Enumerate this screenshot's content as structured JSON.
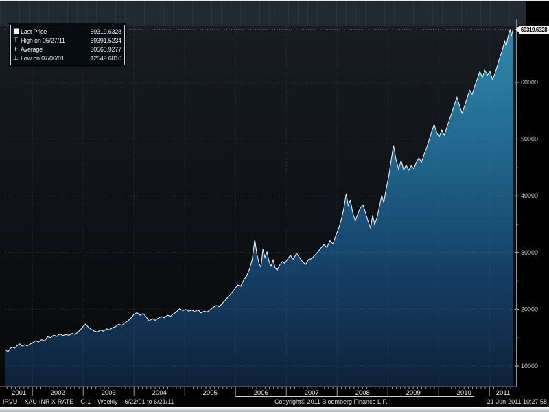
{
  "legend": {
    "rows": [
      {
        "icon_name": "series-key-square-icon",
        "icon": "■",
        "label": "Last Price",
        "value": "69319.6328"
      },
      {
        "icon_name": "high-marker-icon",
        "icon": "⊤",
        "label": "High on 05/27/11",
        "value": "69391.5234"
      },
      {
        "icon_name": "average-marker-icon",
        "icon": "+",
        "label": "Average",
        "value": "30560.9277"
      },
      {
        "icon_name": "low-marker-icon",
        "icon": "⊥",
        "label": "Low on 07/06/01",
        "value": "12549.6016"
      }
    ]
  },
  "y_axis": {
    "last_price_label": "69319.6328"
  },
  "status_bar": {
    "ticker": "IRVU",
    "security": "XAU-INR X-RATE",
    "chart_id": "G-1",
    "periodicity": "Weekly",
    "range": "6/22/01 to 6/21/11",
    "copyright": "Copyright© 2011 Bloomberg Finance L.P.",
    "timestamp": "21-Jun-2011 10:27:58"
  },
  "chart_data": {
    "type": "area",
    "title": "XAU-INR X-RATE Weekly 6/22/01 to 6/21/11",
    "xlabel": "",
    "ylabel": "",
    "x_ticks": [
      2001,
      2002,
      2003,
      2004,
      2005,
      2006,
      2007,
      2008,
      2009,
      2010,
      2011
    ],
    "y_ticks": [
      10000,
      20000,
      30000,
      40000,
      50000,
      60000
    ],
    "ylim": [
      6400,
      70000
    ],
    "xlim": [
      2001.47,
      2011.47
    ],
    "grid": "dotted",
    "legend_position": "top-left",
    "stats": {
      "last": 69319.6328,
      "high": 69391.5234,
      "high_date": "05/27/11",
      "average": 30560.9277,
      "low": 12549.6016,
      "low_date": "07/06/01"
    },
    "colors": {
      "line": "#e9edee",
      "fill_top": "#318aab",
      "fill_mid1": "#226a90",
      "fill_mid2": "#153f66",
      "fill_bottom": "#0e2138",
      "bg_top": "#171c21",
      "bg_bottom": "#070809",
      "grid": "#9aa4ad",
      "axis_text": "#c9cdd0",
      "badge_bg": "#f2f3f3"
    },
    "series": [
      {
        "name": "Last Price",
        "points": [
          [
            2001.47,
            12900
          ],
          [
            2001.5,
            12650
          ],
          [
            2001.52,
            12550
          ],
          [
            2001.56,
            13050
          ],
          [
            2001.6,
            13350
          ],
          [
            2001.65,
            13150
          ],
          [
            2001.7,
            13600
          ],
          [
            2001.75,
            13900
          ],
          [
            2001.8,
            13500
          ],
          [
            2001.85,
            13750
          ],
          [
            2001.9,
            13550
          ],
          [
            2001.95,
            13850
          ],
          [
            2002.0,
            14050
          ],
          [
            2002.06,
            14450
          ],
          [
            2002.12,
            14250
          ],
          [
            2002.18,
            14650
          ],
          [
            2002.24,
            14450
          ],
          [
            2002.3,
            15150
          ],
          [
            2002.36,
            15000
          ],
          [
            2002.42,
            15450
          ],
          [
            2002.48,
            15200
          ],
          [
            2002.54,
            15650
          ],
          [
            2002.6,
            15350
          ],
          [
            2002.66,
            15550
          ],
          [
            2002.72,
            15400
          ],
          [
            2002.78,
            15750
          ],
          [
            2002.84,
            15550
          ],
          [
            2002.9,
            16000
          ],
          [
            2002.95,
            16450
          ],
          [
            2003.0,
            17000
          ],
          [
            2003.05,
            17400
          ],
          [
            2003.1,
            16850
          ],
          [
            2003.16,
            16450
          ],
          [
            2003.22,
            16150
          ],
          [
            2003.28,
            16000
          ],
          [
            2003.34,
            16350
          ],
          [
            2003.4,
            16150
          ],
          [
            2003.46,
            16550
          ],
          [
            2003.52,
            16400
          ],
          [
            2003.58,
            16750
          ],
          [
            2003.64,
            16950
          ],
          [
            2003.7,
            17350
          ],
          [
            2003.76,
            17150
          ],
          [
            2003.82,
            17600
          ],
          [
            2003.88,
            17950
          ],
          [
            2003.94,
            18450
          ],
          [
            2004.0,
            19100
          ],
          [
            2004.06,
            19400
          ],
          [
            2004.12,
            18950
          ],
          [
            2004.18,
            19250
          ],
          [
            2004.24,
            18650
          ],
          [
            2004.3,
            17950
          ],
          [
            2004.36,
            18350
          ],
          [
            2004.42,
            18050
          ],
          [
            2004.48,
            18450
          ],
          [
            2004.54,
            18700
          ],
          [
            2004.6,
            18500
          ],
          [
            2004.66,
            18950
          ],
          [
            2004.72,
            18750
          ],
          [
            2004.78,
            19200
          ],
          [
            2004.84,
            19550
          ],
          [
            2004.9,
            20100
          ],
          [
            2004.96,
            19750
          ],
          [
            2005.02,
            19950
          ],
          [
            2005.08,
            19650
          ],
          [
            2005.14,
            19850
          ],
          [
            2005.2,
            19550
          ],
          [
            2005.26,
            19900
          ],
          [
            2005.32,
            19350
          ],
          [
            2005.38,
            19650
          ],
          [
            2005.44,
            19500
          ],
          [
            2005.5,
            19900
          ],
          [
            2005.56,
            20350
          ],
          [
            2005.62,
            20650
          ],
          [
            2005.68,
            20450
          ],
          [
            2005.74,
            21050
          ],
          [
            2005.8,
            21600
          ],
          [
            2005.86,
            22250
          ],
          [
            2005.92,
            22850
          ],
          [
            2005.98,
            23500
          ],
          [
            2006.04,
            24300
          ],
          [
            2006.1,
            24050
          ],
          [
            2006.16,
            25150
          ],
          [
            2006.22,
            25900
          ],
          [
            2006.28,
            27200
          ],
          [
            2006.33,
            28800
          ],
          [
            2006.38,
            32300
          ],
          [
            2006.42,
            29800
          ],
          [
            2006.46,
            28200
          ],
          [
            2006.5,
            27400
          ],
          [
            2006.54,
            30600
          ],
          [
            2006.58,
            29100
          ],
          [
            2006.62,
            30100
          ],
          [
            2006.66,
            28400
          ],
          [
            2006.7,
            27600
          ],
          [
            2006.74,
            28700
          ],
          [
            2006.78,
            27300
          ],
          [
            2006.82,
            26900
          ],
          [
            2006.87,
            27800
          ],
          [
            2006.92,
            28400
          ],
          [
            2006.97,
            28100
          ],
          [
            2007.02,
            28800
          ],
          [
            2007.08,
            29500
          ],
          [
            2007.14,
            28800
          ],
          [
            2007.2,
            29900
          ],
          [
            2007.26,
            29100
          ],
          [
            2007.32,
            28400
          ],
          [
            2007.38,
            27900
          ],
          [
            2007.44,
            28800
          ],
          [
            2007.5,
            28950
          ],
          [
            2007.56,
            29500
          ],
          [
            2007.62,
            30100
          ],
          [
            2007.68,
            30800
          ],
          [
            2007.74,
            31400
          ],
          [
            2007.8,
            30900
          ],
          [
            2007.86,
            32100
          ],
          [
            2007.92,
            31500
          ],
          [
            2007.97,
            32900
          ],
          [
            2008.03,
            34200
          ],
          [
            2008.08,
            35700
          ],
          [
            2008.13,
            37600
          ],
          [
            2008.18,
            40400
          ],
          [
            2008.22,
            38200
          ],
          [
            2008.26,
            39300
          ],
          [
            2008.31,
            36900
          ],
          [
            2008.36,
            35600
          ],
          [
            2008.41,
            36900
          ],
          [
            2008.46,
            37900
          ],
          [
            2008.51,
            38400
          ],
          [
            2008.56,
            37000
          ],
          [
            2008.61,
            35500
          ],
          [
            2008.66,
            34300
          ],
          [
            2008.7,
            36600
          ],
          [
            2008.74,
            34900
          ],
          [
            2008.79,
            36300
          ],
          [
            2008.84,
            38400
          ],
          [
            2008.88,
            40100
          ],
          [
            2008.92,
            38800
          ],
          [
            2008.96,
            41000
          ],
          [
            2009.02,
            43600
          ],
          [
            2009.07,
            46600
          ],
          [
            2009.11,
            48900
          ],
          [
            2009.16,
            46400
          ],
          [
            2009.21,
            44700
          ],
          [
            2009.26,
            46200
          ],
          [
            2009.31,
            44600
          ],
          [
            2009.36,
            45400
          ],
          [
            2009.41,
            44500
          ],
          [
            2009.46,
            45300
          ],
          [
            2009.51,
            44800
          ],
          [
            2009.56,
            45900
          ],
          [
            2009.61,
            46700
          ],
          [
            2009.66,
            45900
          ],
          [
            2009.71,
            47300
          ],
          [
            2009.76,
            48400
          ],
          [
            2009.81,
            49800
          ],
          [
            2009.86,
            51300
          ],
          [
            2009.91,
            52600
          ],
          [
            2009.96,
            51200
          ],
          [
            2010.01,
            50400
          ],
          [
            2010.06,
            51600
          ],
          [
            2010.11,
            50700
          ],
          [
            2010.16,
            52100
          ],
          [
            2010.21,
            53400
          ],
          [
            2010.26,
            54700
          ],
          [
            2010.31,
            56100
          ],
          [
            2010.36,
            57400
          ],
          [
            2010.41,
            55900
          ],
          [
            2010.46,
            54600
          ],
          [
            2010.51,
            55900
          ],
          [
            2010.56,
            57300
          ],
          [
            2010.61,
            58600
          ],
          [
            2010.66,
            57900
          ],
          [
            2010.71,
            59400
          ],
          [
            2010.76,
            60600
          ],
          [
            2010.81,
            61900
          ],
          [
            2010.86,
            60900
          ],
          [
            2010.91,
            62100
          ],
          [
            2010.96,
            61300
          ],
          [
            2011.01,
            61900
          ],
          [
            2011.06,
            60500
          ],
          [
            2011.11,
            61600
          ],
          [
            2011.16,
            63100
          ],
          [
            2011.21,
            64600
          ],
          [
            2011.26,
            65900
          ],
          [
            2011.3,
            67300
          ],
          [
            2011.33,
            66400
          ],
          [
            2011.36,
            67800
          ],
          [
            2011.39,
            68900
          ],
          [
            2011.41,
            69391.52
          ],
          [
            2011.43,
            68100
          ],
          [
            2011.45,
            68950
          ],
          [
            2011.47,
            69319.63
          ]
        ]
      }
    ]
  }
}
